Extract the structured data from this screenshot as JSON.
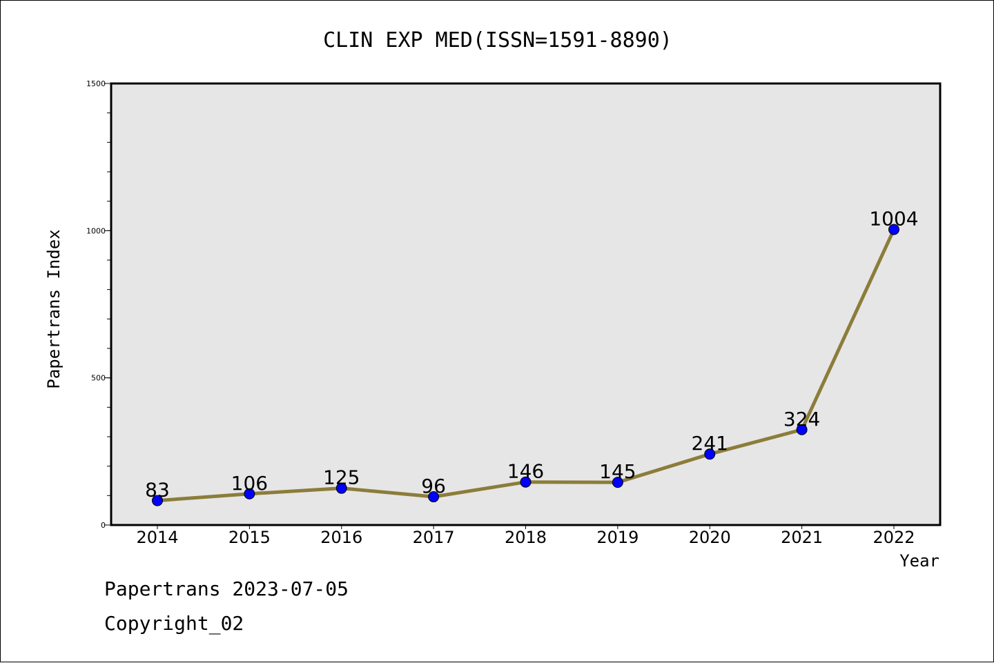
{
  "chart_data": {
    "type": "line",
    "title": "CLIN EXP MED(ISSN=1591-8890)",
    "xlabel": "Year",
    "ylabel": "Papertrans Index",
    "categories": [
      "2014",
      "2015",
      "2016",
      "2017",
      "2018",
      "2019",
      "2020",
      "2021",
      "2022"
    ],
    "series": [
      {
        "values": [
          83,
          106,
          125,
          96,
          146,
          145,
          241,
          324,
          1004
        ]
      }
    ],
    "data_labels": [
      "83",
      "106",
      "125",
      "96",
      "146",
      "145",
      "241",
      "324",
      "1004"
    ],
    "ylim": [
      0,
      1500
    ],
    "y_ticks": [
      "0",
      "500",
      "1000",
      "1500"
    ],
    "y_minor_step": 100,
    "grid": false,
    "line_color": "#8B7D3A",
    "marker_color": "#0000FF",
    "plot_background": "#E6E6E6"
  },
  "footer": {
    "line1": "Papertrans 2023-07-05",
    "line2": "Copyright_02"
  }
}
